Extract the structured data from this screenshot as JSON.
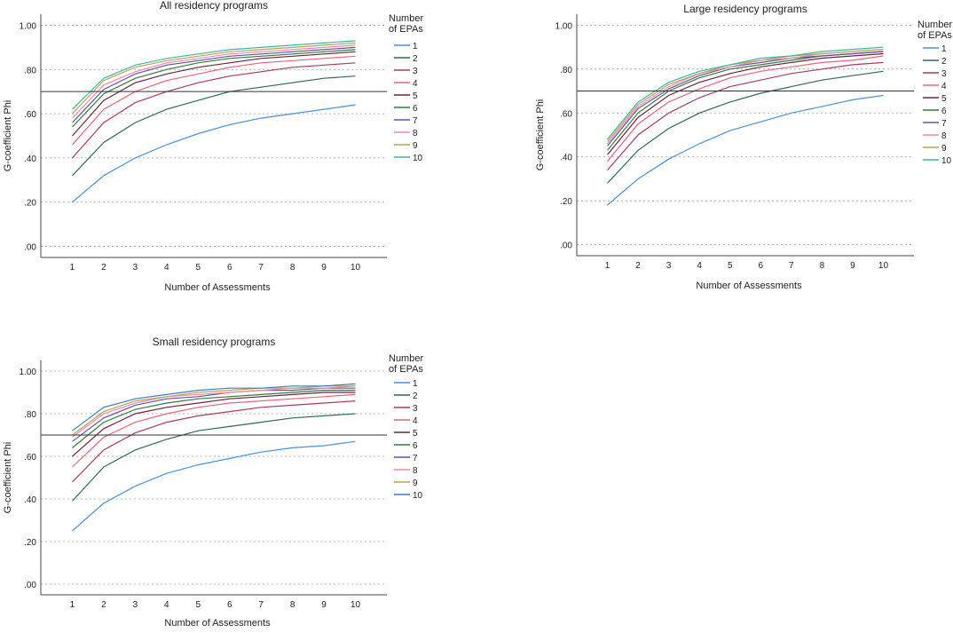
{
  "chart_data": [
    {
      "type": "line",
      "title": "All residency programs",
      "xlabel": "Number of Assessments",
      "ylabel": "G-coefficient Phi",
      "legend_title": "Number of EPAs",
      "legend_position": "right",
      "grid": "horizontal dotted",
      "x": [
        1,
        2,
        3,
        4,
        5,
        6,
        7,
        8,
        9,
        10
      ],
      "ylim": [
        -0.05,
        1.05
      ],
      "yticks": [
        ".00",
        ".20",
        ".40",
        ".60",
        ".80",
        "1.00"
      ],
      "reference_line": 0.7,
      "series": [
        {
          "name": "1",
          "color": "#4a90d9",
          "values": [
            0.2,
            0.32,
            0.4,
            0.46,
            0.51,
            0.55,
            0.58,
            0.6,
            0.62,
            0.64
          ]
        },
        {
          "name": "2",
          "color": "#2e6b4f",
          "values": [
            0.32,
            0.47,
            0.56,
            0.62,
            0.66,
            0.7,
            0.72,
            0.74,
            0.76,
            0.77
          ]
        },
        {
          "name": "3",
          "color": "#a83a62",
          "values": [
            0.4,
            0.56,
            0.65,
            0.7,
            0.74,
            0.77,
            0.79,
            0.81,
            0.82,
            0.83
          ]
        },
        {
          "name": "4",
          "color": "#e8647a",
          "values": [
            0.46,
            0.62,
            0.7,
            0.75,
            0.78,
            0.81,
            0.83,
            0.84,
            0.85,
            0.86
          ]
        },
        {
          "name": "5",
          "color": "#6b2340",
          "values": [
            0.5,
            0.66,
            0.74,
            0.78,
            0.81,
            0.83,
            0.85,
            0.86,
            0.87,
            0.88
          ]
        },
        {
          "name": "6",
          "color": "#2f7d3a",
          "values": [
            0.54,
            0.69,
            0.76,
            0.8,
            0.83,
            0.85,
            0.86,
            0.87,
            0.88,
            0.89
          ]
        },
        {
          "name": "7",
          "color": "#6a4fa3",
          "values": [
            0.56,
            0.71,
            0.78,
            0.82,
            0.84,
            0.86,
            0.87,
            0.88,
            0.89,
            0.9
          ]
        },
        {
          "name": "8",
          "color": "#f08aa8",
          "values": [
            0.58,
            0.73,
            0.79,
            0.83,
            0.85,
            0.87,
            0.88,
            0.89,
            0.9,
            0.91
          ]
        },
        {
          "name": "9",
          "color": "#b5a45a",
          "values": [
            0.6,
            0.75,
            0.81,
            0.84,
            0.86,
            0.88,
            0.89,
            0.9,
            0.91,
            0.92
          ]
        },
        {
          "name": "10",
          "color": "#3bb8a0",
          "values": [
            0.62,
            0.76,
            0.82,
            0.85,
            0.87,
            0.89,
            0.9,
            0.91,
            0.92,
            0.93
          ]
        }
      ]
    },
    {
      "type": "line",
      "title": "Large residency programs",
      "xlabel": "Number of Assessments",
      "ylabel": "G-coefficient Phi",
      "legend_title": "Number of EPAs",
      "legend_position": "right",
      "grid": "horizontal dotted",
      "x": [
        1,
        2,
        3,
        4,
        5,
        6,
        7,
        8,
        9,
        10
      ],
      "ylim": [
        -0.05,
        1.05
      ],
      "yticks": [
        ".00",
        ".20",
        ".40",
        ".60",
        ".80",
        "1.00"
      ],
      "reference_line": 0.7,
      "series": [
        {
          "name": "1",
          "color": "#4a90d9",
          "values": [
            0.18,
            0.3,
            0.39,
            0.46,
            0.52,
            0.56,
            0.6,
            0.63,
            0.66,
            0.68
          ]
        },
        {
          "name": "2",
          "color": "#2e6b4f",
          "values": [
            0.28,
            0.43,
            0.53,
            0.6,
            0.65,
            0.69,
            0.72,
            0.75,
            0.77,
            0.79
          ]
        },
        {
          "name": "3",
          "color": "#a83a62",
          "values": [
            0.34,
            0.5,
            0.6,
            0.67,
            0.72,
            0.75,
            0.78,
            0.8,
            0.82,
            0.83
          ]
        },
        {
          "name": "4",
          "color": "#e8647a",
          "values": [
            0.38,
            0.55,
            0.65,
            0.71,
            0.76,
            0.79,
            0.81,
            0.83,
            0.84,
            0.86
          ]
        },
        {
          "name": "5",
          "color": "#6b2340",
          "values": [
            0.41,
            0.58,
            0.68,
            0.74,
            0.78,
            0.81,
            0.83,
            0.85,
            0.86,
            0.87
          ]
        },
        {
          "name": "6",
          "color": "#2f7d3a",
          "values": [
            0.43,
            0.6,
            0.7,
            0.76,
            0.8,
            0.82,
            0.84,
            0.86,
            0.87,
            0.88
          ]
        },
        {
          "name": "7",
          "color": "#6a4fa3",
          "values": [
            0.45,
            0.62,
            0.71,
            0.77,
            0.81,
            0.83,
            0.85,
            0.86,
            0.87,
            0.88
          ]
        },
        {
          "name": "8",
          "color": "#f08aa8",
          "values": [
            0.46,
            0.63,
            0.72,
            0.78,
            0.81,
            0.84,
            0.85,
            0.87,
            0.88,
            0.89
          ]
        },
        {
          "name": "9",
          "color": "#b5a45a",
          "values": [
            0.47,
            0.64,
            0.73,
            0.78,
            0.82,
            0.84,
            0.86,
            0.87,
            0.88,
            0.89
          ]
        },
        {
          "name": "10",
          "color": "#3bb8a0",
          "values": [
            0.48,
            0.65,
            0.74,
            0.79,
            0.82,
            0.85,
            0.86,
            0.88,
            0.89,
            0.9
          ]
        }
      ]
    },
    {
      "type": "line",
      "title": "Small residency programs",
      "xlabel": "Number of Assessments",
      "ylabel": "G-coefficient Phi",
      "legend_title": "Number of EPAs",
      "legend_position": "right",
      "grid": "horizontal dotted",
      "x": [
        1,
        2,
        3,
        4,
        5,
        6,
        7,
        8,
        9,
        10
      ],
      "ylim": [
        -0.05,
        1.05
      ],
      "yticks": [
        ".00",
        ".20",
        ".40",
        ".60",
        ".80",
        "1.00"
      ],
      "reference_line": 0.7,
      "series": [
        {
          "name": "1",
          "color": "#4a90d9",
          "values": [
            0.25,
            0.38,
            0.46,
            0.52,
            0.56,
            0.59,
            0.62,
            0.64,
            0.65,
            0.67
          ]
        },
        {
          "name": "2",
          "color": "#2e6b4f",
          "values": [
            0.39,
            0.55,
            0.63,
            0.68,
            0.72,
            0.74,
            0.76,
            0.78,
            0.79,
            0.8
          ]
        },
        {
          "name": "3",
          "color": "#a83a62",
          "values": [
            0.48,
            0.63,
            0.71,
            0.76,
            0.79,
            0.81,
            0.83,
            0.84,
            0.85,
            0.86
          ]
        },
        {
          "name": "4",
          "color": "#e8647a",
          "values": [
            0.55,
            0.69,
            0.76,
            0.8,
            0.83,
            0.85,
            0.86,
            0.87,
            0.88,
            0.89
          ]
        },
        {
          "name": "5",
          "color": "#6b2340",
          "values": [
            0.6,
            0.73,
            0.8,
            0.83,
            0.85,
            0.87,
            0.88,
            0.89,
            0.9,
            0.9
          ]
        },
        {
          "name": "6",
          "color": "#2f7d3a",
          "values": [
            0.64,
            0.76,
            0.82,
            0.85,
            0.87,
            0.88,
            0.89,
            0.9,
            0.91,
            0.91
          ]
        },
        {
          "name": "7",
          "color": "#6a4fa3",
          "values": [
            0.67,
            0.78,
            0.84,
            0.87,
            0.88,
            0.9,
            0.91,
            0.91,
            0.92,
            0.92
          ]
        },
        {
          "name": "8",
          "color": "#f08aa8",
          "values": [
            0.69,
            0.8,
            0.85,
            0.88,
            0.89,
            0.9,
            0.91,
            0.92,
            0.92,
            0.93
          ]
        },
        {
          "name": "9",
          "color": "#b5a45a",
          "values": [
            0.7,
            0.81,
            0.86,
            0.88,
            0.9,
            0.91,
            0.92,
            0.92,
            0.93,
            0.93
          ]
        },
        {
          "name": "10",
          "color": "#3a7fc1",
          "values": [
            0.72,
            0.83,
            0.87,
            0.89,
            0.91,
            0.92,
            0.92,
            0.93,
            0.93,
            0.94
          ]
        }
      ]
    }
  ]
}
